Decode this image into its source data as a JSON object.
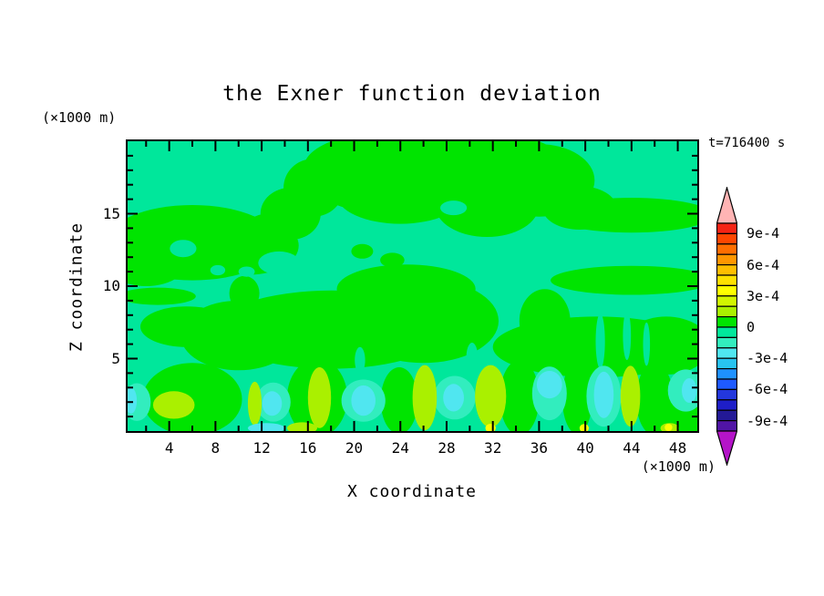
{
  "chart_data": {
    "type": "filled-contour-heatmap",
    "title": "the Exner function deviation",
    "time_label": "t=716400 s",
    "x_axis": {
      "title": "X coordinate",
      "unit_label": "(×1000 m)",
      "major_ticks": [
        4,
        8,
        12,
        16,
        20,
        24,
        28,
        32,
        36,
        40,
        44,
        48
      ],
      "minor_tick_interval": 2,
      "range": [
        0.4,
        49.7
      ]
    },
    "z_axis": {
      "title": "Z coordinate",
      "unit_label": "(×1000 m)",
      "major_ticks": [
        5,
        10,
        15
      ],
      "minor_tick_interval": 1,
      "range": [
        0,
        20
      ]
    },
    "colorbar": {
      "tick_labels": [
        "9e-4",
        "6e-4",
        "3e-4",
        "0",
        "-3e-4",
        "-6e-4",
        "-9e-4"
      ],
      "labeled_levels": [
        0.0009,
        0.0006,
        0.0003,
        0,
        -0.0003,
        -0.0006,
        -0.0009
      ],
      "contour_interval": 0.0001,
      "cell_colors_top_to_bottom": [
        "#f52314",
        "#ff4600",
        "#ff6e00",
        "#ff9600",
        "#ffbe00",
        "#ffe100",
        "#ffff00",
        "#d2f500",
        "#aaf000",
        "#00e400",
        "#00e79b",
        "#32edbe",
        "#50e6f0",
        "#28c3f0",
        "#1e91ff",
        "#1e5aff",
        "#2337dc",
        "#1e1ec8",
        "#231996",
        "#5014a5"
      ],
      "over_arrow_color": "#ffb4b4",
      "under_arrow_color": "#b414c8"
    },
    "field": {
      "notes": "Background is weakly negative (-1e-4..0, teal) with broad weakly positive (0..1e-4, green) masses aloft; stronger anomalies (±2-3e-4: chartreuse, turquoise, cyan, yellow) confined below z≈4.5 km.",
      "background_color": "teal",
      "palette": {
        "green": "#00e400",
        "teal": "#00e79b",
        "turquoise": "#32edbe",
        "chartreuse": "#aaf000",
        "cyan": "#50e6f0",
        "yellow": "#fdff00"
      },
      "regions": [
        {
          "color": "green",
          "ellipses": [
            [
              6,
              13,
              7.5,
              2.6
            ],
            [
              2,
              12.2,
              4,
              2.2
            ],
            [
              11,
              12.8,
              4.2,
              2
            ],
            [
              12.5,
              13.8,
              2,
              1.2
            ],
            [
              14.5,
              15,
              2.6,
              1.8
            ],
            [
              16.5,
              16.8,
              2.6,
              2
            ],
            [
              20.5,
              17.8,
              4.2,
              2.5
            ],
            [
              27,
              18.3,
              11.3,
              2.8
            ],
            [
              24,
              16.3,
              5.5,
              2
            ],
            [
              31.5,
              15.6,
              4.5,
              2.2
            ],
            [
              36,
              17.3,
              4.8,
              2.5
            ],
            [
              39.5,
              15.4,
              3.2,
              1.5
            ],
            [
              44,
              14.9,
              7,
              1.2
            ],
            [
              44,
              10.4,
              7,
              1
            ],
            [
              36.5,
              7.6,
              2.2,
              2.2
            ],
            [
              41,
              5.8,
              9,
              2.1
            ],
            [
              47,
              5.9,
              3.8,
              2
            ],
            [
              18,
              7,
              10,
              2.7
            ],
            [
              26,
              7.6,
              6.5,
              2.9
            ],
            [
              10,
              6.6,
              5,
              2.4
            ],
            [
              24.5,
              9.8,
              6,
              1.7
            ],
            [
              10.5,
              9.5,
              1.3,
              1.2
            ],
            [
              5.5,
              7.2,
              4,
              1.4
            ],
            [
              3,
              9.3,
              3.3,
              0.6
            ],
            [
              6,
              2.2,
              4.3,
              2.5
            ],
            [
              16.8,
              2.3,
              2.6,
              2.7
            ],
            [
              23.9,
              2.1,
              1.6,
              2.3
            ],
            [
              34.3,
              2.3,
              1.7,
              2.6
            ],
            [
              39.3,
              2.3,
              1.3,
              2.5
            ],
            [
              46,
              2.2,
              1.6,
              2.5
            ],
            [
              48,
              1,
              3,
              1.3
            ],
            [
              20.7,
              12.4,
              0.95,
              0.5
            ],
            [
              23.3,
              11.8,
              1.05,
              0.5
            ],
            [
              31.5,
              14,
              1.5,
              0.5
            ]
          ]
        },
        {
          "color": "teal",
          "ellipses": [
            [
              5.2,
              12.6,
              1.15,
              0.6
            ],
            [
              8.2,
              11.1,
              0.65,
              0.35
            ],
            [
              10.7,
              11,
              0.7,
              0.35
            ],
            [
              28.6,
              15.4,
              1.15,
              0.5
            ],
            [
              13.5,
              11.6,
              1.8,
              0.8
            ],
            [
              41.3,
              6.2,
              0.4,
              1.9
            ],
            [
              43.6,
              6.6,
              0.35,
              1.7
            ],
            [
              45.3,
              6,
              0.3,
              1.5
            ],
            [
              30.2,
              5.1,
              0.5,
              1
            ],
            [
              20.5,
              4.9,
              0.45,
              0.9
            ]
          ]
        },
        {
          "color": "turquoise",
          "ellipses": [
            [
              1.2,
              2,
              1.2,
              1.3
            ],
            [
              13,
              2,
              1.5,
              1.35
            ],
            [
              20.8,
              2.1,
              1.9,
              1.45
            ],
            [
              28.7,
              2.3,
              1.8,
              1.5
            ],
            [
              36.9,
              2.6,
              1.5,
              1.85
            ],
            [
              41.6,
              2.4,
              1.5,
              2.1
            ],
            [
              48.7,
              2.8,
              1.55,
              1.45
            ]
          ]
        },
        {
          "color": "chartreuse",
          "ellipses": [
            [
              4.4,
              1.8,
              1.8,
              0.95
            ],
            [
              11.4,
              1.9,
              0.6,
              1.5
            ],
            [
              17,
              2.3,
              1,
              2.1
            ],
            [
              26.1,
              2.3,
              1.05,
              2.25
            ],
            [
              31.8,
              2.4,
              1.35,
              2.15
            ],
            [
              43.9,
              2.4,
              0.85,
              2.1
            ],
            [
              15.5,
              0.2,
              1.3,
              0.4
            ],
            [
              47.3,
              0.2,
              0.8,
              0.35
            ]
          ]
        },
        {
          "color": "cyan",
          "ellipses": [
            [
              0.7,
              2.1,
              0.5,
              0.9
            ],
            [
              12.9,
              1.9,
              0.85,
              0.85
            ],
            [
              20.8,
              2.1,
              1.05,
              1.05
            ],
            [
              28.6,
              2.3,
              0.9,
              0.95
            ],
            [
              36.9,
              3.2,
              1.1,
              0.95
            ],
            [
              41.6,
              2.5,
              0.85,
              1.6
            ],
            [
              49,
              2.8,
              0.65,
              0.85
            ],
            [
              12.4,
              0.2,
              1.6,
              0.35
            ]
          ]
        },
        {
          "color": "yellow",
          "ellipses": [
            [
              31.8,
              0.2,
              0.45,
              0.3
            ],
            [
              39.9,
              0.2,
              0.4,
              0.28
            ],
            [
              47.2,
              0.25,
              0.33,
              0.25
            ]
          ]
        }
      ]
    }
  }
}
